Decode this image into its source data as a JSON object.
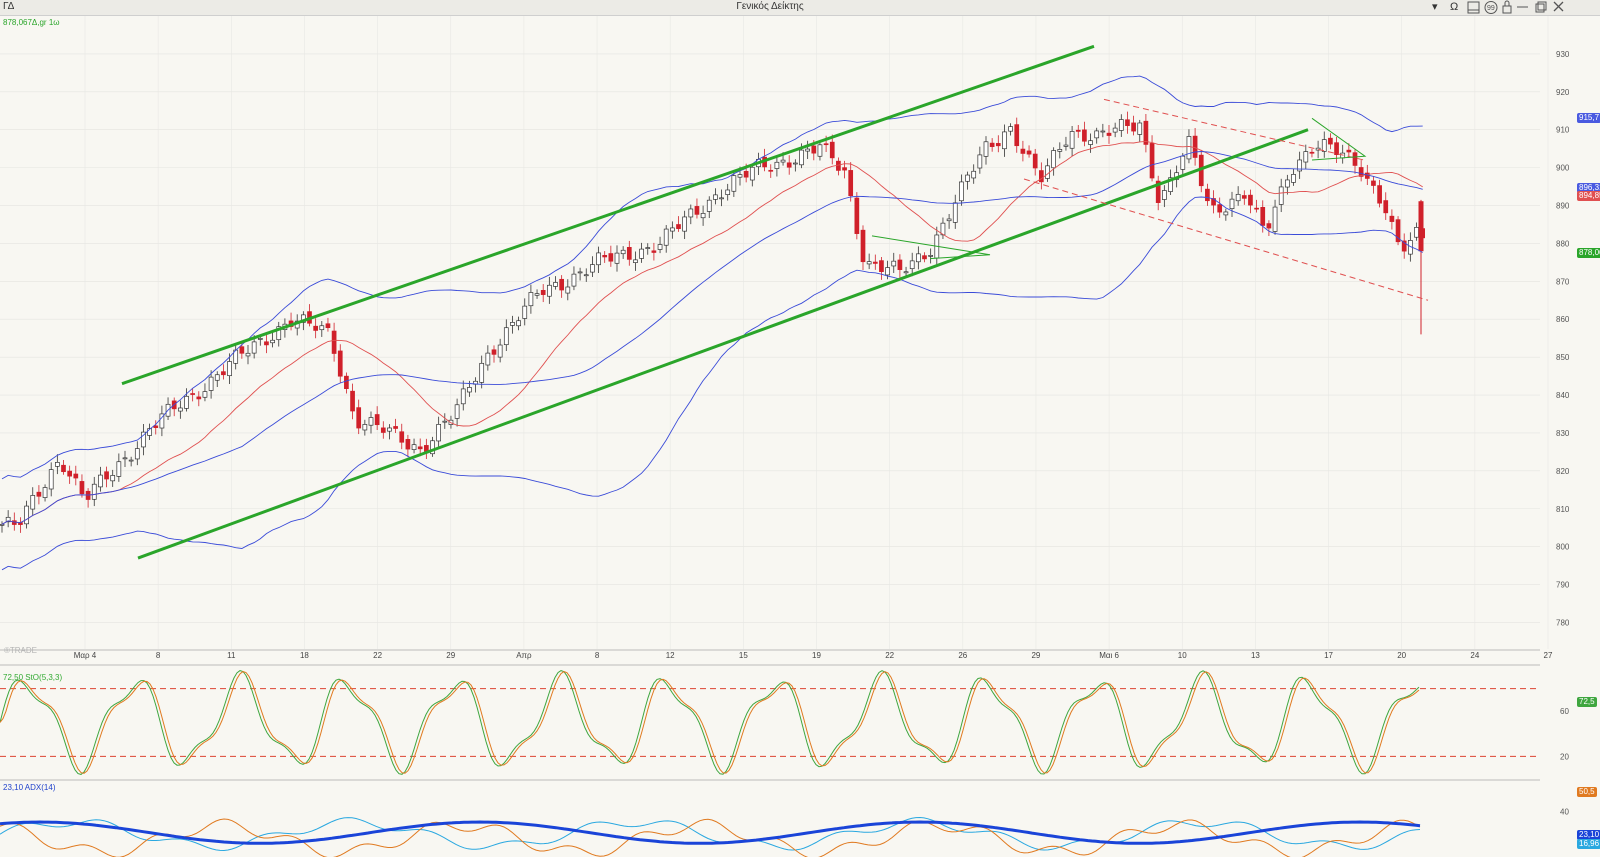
{
  "window": {
    "symbol": "ΓΔ",
    "title": "Γενικός Δείκτης"
  },
  "controls": [
    "▾",
    "Ω"
  ],
  "price_overlay": "878,067Δ.gr 1ω",
  "watermark": "®TRADE",
  "stoch_label": "72,50 StO(5,3,3)",
  "adx_label": "23,10 ADX(14)",
  "colors": {
    "up": "#333333",
    "down": "#d0202a",
    "green": "#2aa52a",
    "blue": "#3a4bd8",
    "red": "#e05050",
    "osc_green": "#3fa63f",
    "osc_orange": "#e07a20",
    "adx_blue": "#1a44d8",
    "adx_cyan": "#2aa8e0"
  },
  "chart_data": [
    {
      "type": "candlestick",
      "title": "Γενικός Δείκτης",
      "ylim": [
        773,
        940
      ],
      "y_ticks": [
        780,
        790,
        800,
        810,
        820,
        830,
        840,
        850,
        860,
        870,
        880,
        890,
        900,
        910,
        920,
        930
      ],
      "x_tick_labels": [
        "Μαρ 4",
        "8",
        "11",
        "18",
        "22",
        "29",
        "Απρ",
        "8",
        "12",
        "15",
        "19",
        "22",
        "26",
        "29",
        "Μαι 6",
        "10",
        "13",
        "17",
        "20",
        "24",
        "27"
      ],
      "price_badges": [
        "915,7",
        "896,31",
        "894,85",
        "878,06"
      ],
      "key_levels": {
        "last": 878.07,
        "open": 891,
        "low": 856,
        "upper_band": 915.7,
        "ema_50": 896.31,
        "ema_20": 894.85
      },
      "trendlines": [
        {
          "name": "Upper channel",
          "from": [
            "Μαρ 5",
            843
          ],
          "to": [
            "Μαι 1",
            932
          ]
        },
        {
          "name": "Lower channel",
          "from": [
            "Μαρ 6",
            797
          ],
          "to": [
            "Μαι 17",
            910
          ]
        },
        {
          "name": "Falling channel top",
          "from": [
            "Απρ 30",
            918
          ],
          "to": [
            "Μαι 19",
            902
          ]
        },
        {
          "name": "Falling channel bottom",
          "from": [
            "Απρ 25",
            897
          ],
          "to": [
            "Μαι 22",
            865
          ]
        }
      ]
    },
    {
      "type": "line",
      "title": "StO(5,3,3)",
      "last_value": 72.5,
      "ylim": [
        0,
        100
      ],
      "y_ticks": [
        60,
        20
      ],
      "reference_lines": [
        80,
        20
      ],
      "series": [
        {
          "name": "%K"
        },
        {
          "name": "%D"
        }
      ]
    },
    {
      "type": "line",
      "title": "ADX(14)",
      "last_value": 23.1,
      "ylim": [
        10,
        60
      ],
      "y_ticks": [
        40
      ],
      "value_badges": [
        "50,5",
        "23,10",
        "16,96"
      ]
    }
  ]
}
